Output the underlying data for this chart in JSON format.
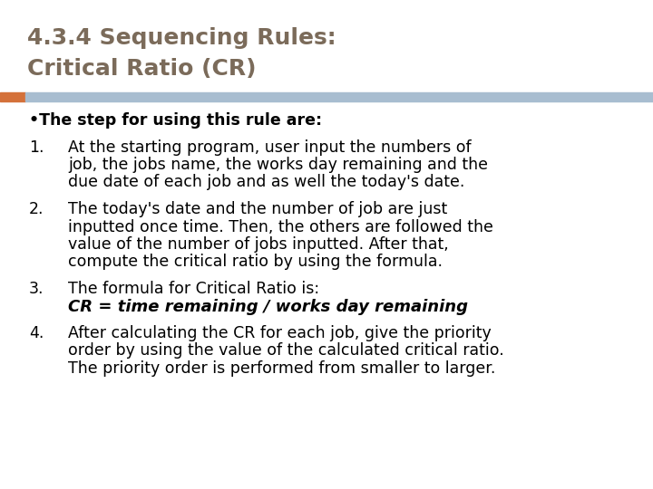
{
  "title_line1": "4.3.4 Sequencing Rules:",
  "title_line2": "Critical Ratio (CR)",
  "title_color": "#7B6B5A",
  "bg_color": "#FFFFFF",
  "bar_orange": "#D4713A",
  "bar_blue": "#A8BDD0",
  "bullet_header": "•The step for using this rule are:",
  "item1_num": "1.",
  "item1_lines": [
    "At the starting program, user input the numbers of",
    "job, the jobs name, the works day remaining and the",
    "due date of each job and as well the today's date."
  ],
  "item2_num": "2.",
  "item2_lines": [
    "The today's date and the number of job are just",
    "inputted once time. Then, the others are followed the",
    "value of the number of jobs inputted. After that,",
    "compute the critical ratio by using the formula."
  ],
  "item3_num": "3.",
  "item3_line1": "The formula for Critical Ratio is:",
  "item3_line2": "CR = time remaining / works day remaining",
  "item4_num": "4.",
  "item4_lines": [
    "After calculating the CR for each job, give the priority",
    "order by using the value of the calculated critical ratio.",
    "The priority order is performed from smaller to larger."
  ],
  "font_size_title": 18,
  "font_size_body": 12.5
}
